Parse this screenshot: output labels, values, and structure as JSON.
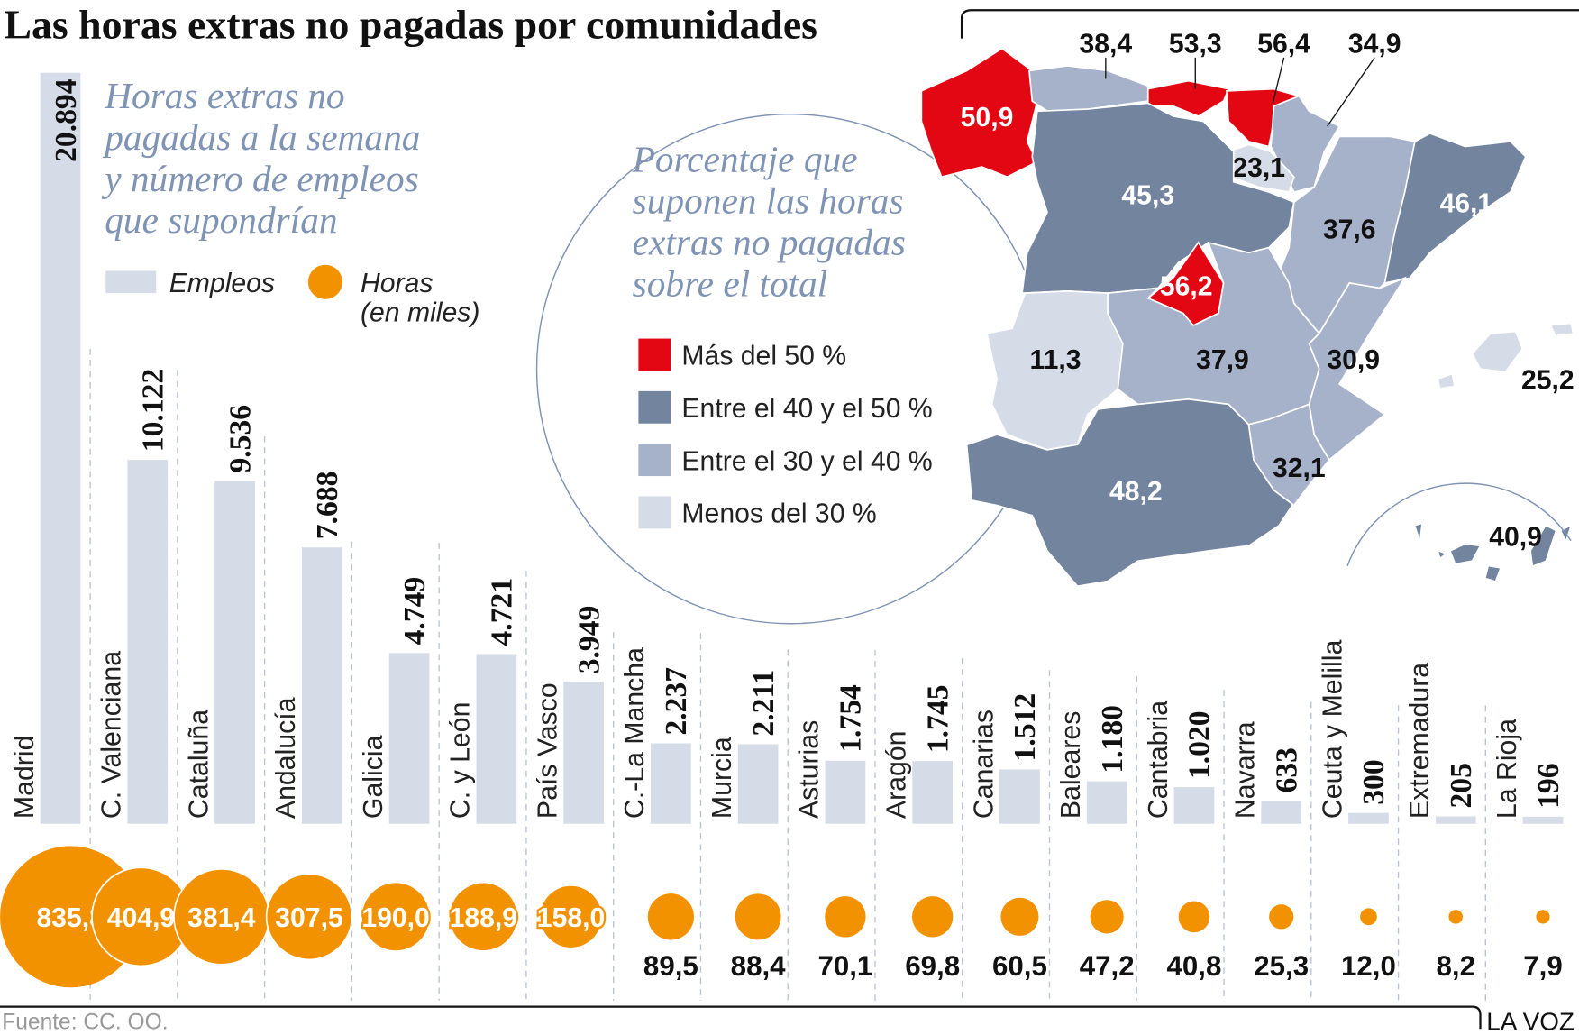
{
  "title": "Las horas extras no pagadas por comunidades",
  "subtitle_lines": [
    "Horas extras no",
    "pagadas a la semana",
    "y número de empleos",
    "que supondrían"
  ],
  "legend": {
    "empleos": "Empleos",
    "horas_line1": "Horas",
    "horas_line2": "(en miles)"
  },
  "map": {
    "title_lines": [
      "Porcentaje que",
      "suponen las horas",
      "extras no pagadas",
      "sobre el total"
    ],
    "legend": [
      {
        "label": "Más del 50 %",
        "color": "#e30613"
      },
      {
        "label": "Entre el 40 y el 50 %",
        "color": "#73849f"
      },
      {
        "label": "Entre el 30 y el 40 %",
        "color": "#a6b2ca"
      },
      {
        "label": "Menos del 30 %",
        "color": "#d5dbe7"
      }
    ],
    "regions": [
      {
        "name": "Galicia",
        "value": "50,9"
      },
      {
        "name": "Asturias",
        "value": "38,4"
      },
      {
        "name": "Cantabria",
        "value": "53,3"
      },
      {
        "name": "País Vasco",
        "value": "56,4"
      },
      {
        "name": "Navarra",
        "value": "34,9"
      },
      {
        "name": "La Rioja",
        "value": "23,1"
      },
      {
        "name": "C. y León",
        "value": "45,3"
      },
      {
        "name": "Aragón",
        "value": "37,6"
      },
      {
        "name": "Cataluña",
        "value": "46,1"
      },
      {
        "name": "Madrid",
        "value": "56,2"
      },
      {
        "name": "Extremadura",
        "value": "11,3"
      },
      {
        "name": "C.-La Mancha",
        "value": "37,9"
      },
      {
        "name": "C. Valenciana",
        "value": "30,9"
      },
      {
        "name": "Baleares",
        "value": "25,2"
      },
      {
        "name": "Andalucía",
        "value": "48,2"
      },
      {
        "name": "Murcia",
        "value": "32,1"
      },
      {
        "name": "Canarias",
        "value": "40,9"
      }
    ]
  },
  "chart_data": {
    "type": "bar",
    "categories": [
      "Madrid",
      "C. Valenciana",
      "Cataluña",
      "Andalucía",
      "Galicia",
      "C. y León",
      "País Vasco",
      "C.-La Mancha",
      "Murcia",
      "Asturias",
      "Aragón",
      "Canarias",
      "Baleares",
      "Cantabria",
      "Navarra",
      "Ceuta y Melilla",
      "Extremadura",
      "La Rioja"
    ],
    "series": [
      {
        "name": "Empleos",
        "values": [
          20894,
          10122,
          9536,
          7688,
          4749,
          4721,
          3949,
          2237,
          2211,
          1754,
          1745,
          1512,
          1180,
          1020,
          633,
          300,
          205,
          196
        ],
        "labels": [
          "20.894",
          "10.122",
          "9.536",
          "7.688",
          "4.749",
          "4.721",
          "3.949",
          "2.237",
          "2.211",
          "1.754",
          "1.745",
          "1.512",
          "1.180",
          "1.020",
          "633",
          "300",
          "205",
          "196"
        ],
        "color": "#d5dbe7"
      },
      {
        "name": "Horas (en miles)",
        "values": [
          835.8,
          404.9,
          381.4,
          307.5,
          190.0,
          188.9,
          158.0,
          89.5,
          88.4,
          70.1,
          69.8,
          60.5,
          47.2,
          40.8,
          25.3,
          12.0,
          8.2,
          7.9
        ],
        "labels": [
          "835,8",
          "404,9",
          "381,4",
          "307,5",
          "190,0",
          "188,9",
          "158,0",
          "89,5",
          "88,4",
          "70,1",
          "69,8",
          "60,5",
          "47,2",
          "40,8",
          "25,3",
          "12,0",
          "8,2",
          "7,9"
        ],
        "color": "#f39200"
      }
    ]
  },
  "source": "Fuente: CC. OO.",
  "brand": "LA VOZ"
}
